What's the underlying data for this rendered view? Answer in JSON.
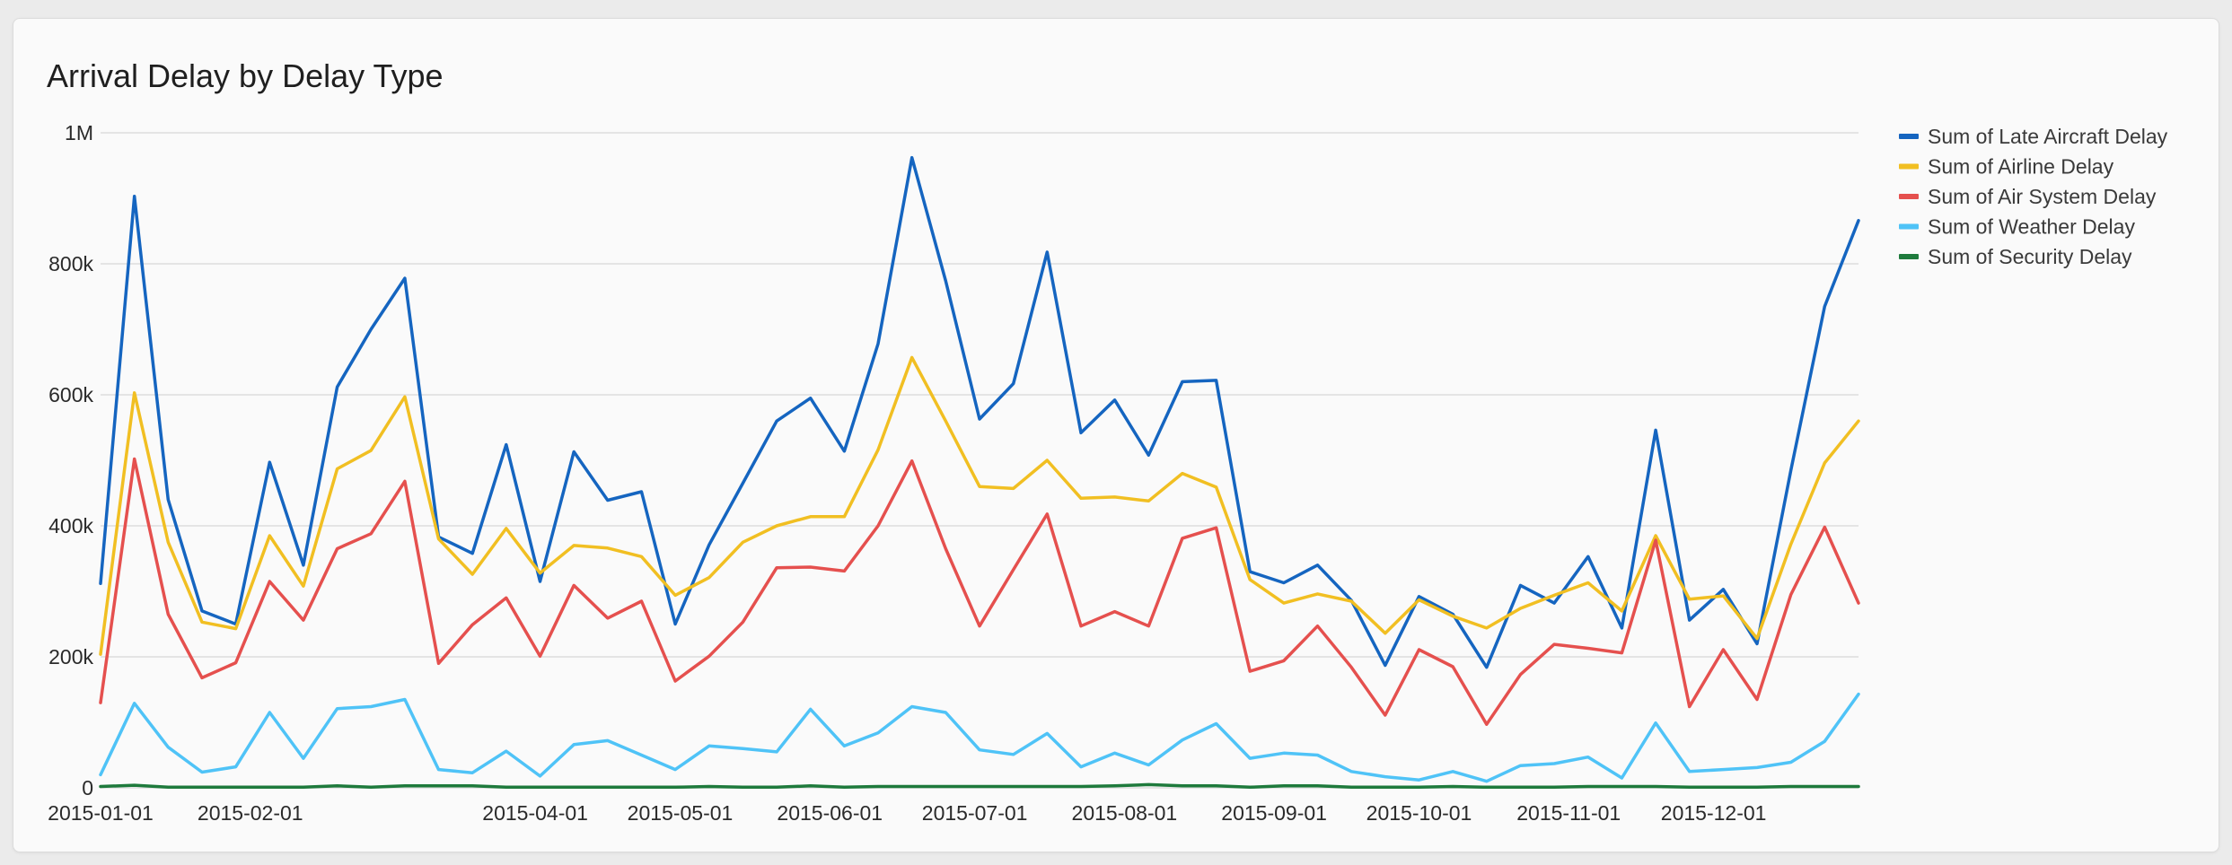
{
  "chart_data": {
    "type": "line",
    "title": "Arrival Delay by Delay Type",
    "xlabel": "",
    "ylabel": "",
    "ylim": [
      0,
      1000000
    ],
    "yticks": [
      {
        "value": 0,
        "label": "0"
      },
      {
        "value": 200000,
        "label": "200k"
      },
      {
        "value": 400000,
        "label": "400k"
      },
      {
        "value": 600000,
        "label": "600k"
      },
      {
        "value": 800000,
        "label": "800k"
      },
      {
        "value": 1000000,
        "label": "1M"
      }
    ],
    "xlim": [
      "2015-01-01",
      "2015-12-31"
    ],
    "xticks": [
      {
        "value": "2015-01-01",
        "label": "2015-01-01"
      },
      {
        "value": "2015-02-01",
        "label": "2015-02-01"
      },
      {
        "value": "2015-04-01",
        "label": "2015-04-01"
      },
      {
        "value": "2015-05-01",
        "label": "2015-05-01"
      },
      {
        "value": "2015-06-01",
        "label": "2015-06-01"
      },
      {
        "value": "2015-07-01",
        "label": "2015-07-01"
      },
      {
        "value": "2015-08-01",
        "label": "2015-08-01"
      },
      {
        "value": "2015-09-01",
        "label": "2015-09-01"
      },
      {
        "value": "2015-10-01",
        "label": "2015-10-01"
      },
      {
        "value": "2015-11-01",
        "label": "2015-11-01"
      },
      {
        "value": "2015-12-01",
        "label": "2015-12-01"
      }
    ],
    "grid": true,
    "legend_position": "right",
    "x": [
      "2015-01-01",
      "2015-01-08",
      "2015-01-15",
      "2015-01-22",
      "2015-01-29",
      "2015-02-05",
      "2015-02-12",
      "2015-02-19",
      "2015-02-26",
      "2015-03-05",
      "2015-03-12",
      "2015-03-19",
      "2015-03-26",
      "2015-04-02",
      "2015-04-09",
      "2015-04-16",
      "2015-04-23",
      "2015-04-30",
      "2015-05-07",
      "2015-05-14",
      "2015-05-21",
      "2015-05-28",
      "2015-06-04",
      "2015-06-11",
      "2015-06-18",
      "2015-06-25",
      "2015-07-02",
      "2015-07-09",
      "2015-07-16",
      "2015-07-23",
      "2015-07-30",
      "2015-08-06",
      "2015-08-13",
      "2015-08-20",
      "2015-08-27",
      "2015-09-03",
      "2015-09-10",
      "2015-09-17",
      "2015-09-24",
      "2015-10-01",
      "2015-10-08",
      "2015-10-15",
      "2015-10-22",
      "2015-10-29",
      "2015-11-05",
      "2015-11-12",
      "2015-11-19",
      "2015-11-26",
      "2015-12-03",
      "2015-12-10",
      "2015-12-17",
      "2015-12-24",
      "2015-12-31"
    ],
    "series": [
      {
        "name": "Sum of Late Aircraft Delay",
        "color": "#1565c0",
        "values": [
          312000,
          903000,
          440000,
          270000,
          250000,
          497000,
          340000,
          612000,
          700000,
          778000,
          383000,
          358000,
          524000,
          315000,
          513000,
          439000,
          452000,
          250000,
          371000,
          465000,
          560000,
          595000,
          514000,
          678000,
          962000,
          774000,
          563000,
          617000,
          818000,
          542000,
          592000,
          508000,
          620000,
          622000,
          330000,
          313000,
          340000,
          286000,
          187000,
          292000,
          265000,
          184000,
          309000,
          282000,
          353000,
          244000,
          546000,
          256000,
          303000,
          220000,
          485000,
          735000,
          866000
        ]
      },
      {
        "name": "Sum of Airline Delay",
        "color": "#f1bf22",
        "values": [
          204000,
          603000,
          375000,
          253000,
          243000,
          385000,
          308000,
          487000,
          515000,
          597000,
          380000,
          326000,
          396000,
          328000,
          370000,
          366000,
          353000,
          294000,
          321000,
          375000,
          400000,
          414000,
          414000,
          516000,
          657000,
          560000,
          460000,
          457000,
          500000,
          442000,
          444000,
          438000,
          480000,
          459000,
          318000,
          282000,
          296000,
          285000,
          236000,
          287000,
          262000,
          244000,
          274000,
          294000,
          313000,
          270000,
          385000,
          288000,
          293000,
          228000,
          372000,
          496000,
          560000
        ]
      },
      {
        "name": "Sum of Air System Delay",
        "color": "#e5504e",
        "values": [
          130000,
          502000,
          265000,
          168000,
          191000,
          315000,
          256000,
          365000,
          388000,
          468000,
          190000,
          249000,
          290000,
          201000,
          309000,
          259000,
          285000,
          163000,
          201000,
          253000,
          336000,
          337000,
          331000,
          400000,
          499000,
          365000,
          247000,
          333000,
          418000,
          247000,
          269000,
          247000,
          381000,
          397000,
          178000,
          194000,
          247000,
          184000,
          111000,
          211000,
          185000,
          97000,
          173000,
          219000,
          213000,
          206000,
          378000,
          124000,
          211000,
          135000,
          295000,
          398000,
          282000
        ]
      },
      {
        "name": "Sum of Weather Delay",
        "color": "#4fc3f7",
        "values": [
          20000,
          129000,
          62000,
          24000,
          32000,
          115000,
          45000,
          121000,
          124000,
          135000,
          28000,
          23000,
          56000,
          18000,
          66000,
          72000,
          50000,
          28000,
          64000,
          60000,
          55000,
          120000,
          64000,
          84000,
          124000,
          115000,
          58000,
          51000,
          83000,
          32000,
          53000,
          35000,
          73000,
          98000,
          45000,
          53000,
          50000,
          25000,
          17000,
          12000,
          25000,
          10000,
          34000,
          37000,
          47000,
          15000,
          99000,
          25000,
          28000,
          31000,
          39000,
          71000,
          143000
        ]
      },
      {
        "name": "Sum of Security Delay",
        "color": "#1e7a3c",
        "values": [
          2000,
          4000,
          1000,
          1000,
          1000,
          1000,
          1000,
          3000,
          1000,
          3000,
          3000,
          3000,
          1000,
          1000,
          1000,
          1000,
          1000,
          1000,
          2000,
          1000,
          1000,
          3000,
          1000,
          2000,
          2000,
          2000,
          2000,
          2000,
          2000,
          2000,
          3000,
          5000,
          3000,
          3000,
          1000,
          3000,
          3000,
          1000,
          1000,
          1000,
          2000,
          1000,
          1000,
          1000,
          2000,
          2000,
          2000,
          1000,
          1000,
          1000,
          2000,
          2000,
          2000
        ]
      }
    ]
  }
}
